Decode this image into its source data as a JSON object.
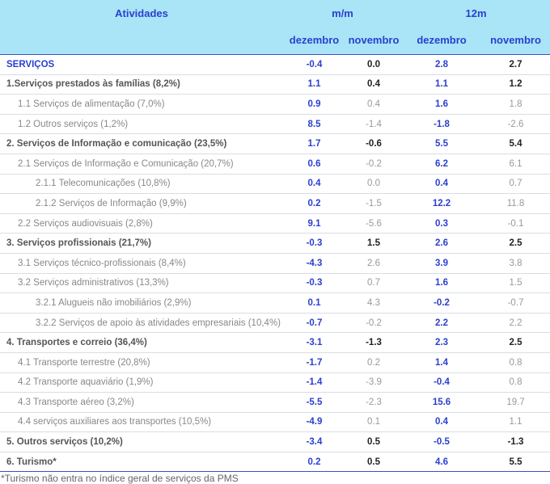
{
  "table": {
    "header": [
      "Atividades",
      "m/m",
      "12m"
    ],
    "subheader": [
      "dezembro",
      "novembro",
      "dezembro",
      "novembro"
    ],
    "rows": [
      [
        "SERVIÇOS",
        "-0.4",
        "0.0",
        "2.8",
        "2.7"
      ],
      [
        "1.Serviços prestados às famílias (8,2%)",
        "1.1",
        "0.4",
        "1.1",
        "1.2"
      ],
      [
        "1.1 Serviços de alimentação (7,0%)",
        "0.9",
        "0.4",
        "1.6",
        "1.8"
      ],
      [
        "1.2 Outros serviços (1,2%)",
        "8.5",
        "-1.4",
        "-1.8",
        "-2.6"
      ],
      [
        "2. Serviços de Informação e comunicação (23,5%)",
        "1.7",
        "-0.6",
        "5.5",
        "5.4"
      ],
      [
        "2.1 Serviços de Informação e Comunicação (20,7%)",
        "0.6",
        "-0.2",
        "6.2",
        "6.1"
      ],
      [
        "2.1.1 Telecomunicações (10,8%)",
        "0.4",
        "0.0",
        "0.4",
        "0.7"
      ],
      [
        "2.1.2 Serviços de Informação (9,9%)",
        "0.2",
        "-1.5",
        "12.2",
        "11.8"
      ],
      [
        "2.2 Serviços audiovisuais (2,8%)",
        "9.1",
        "-5.6",
        "0.3",
        "-0.1"
      ],
      [
        "3. Serviços profissionais (21,7%)",
        "-0.3",
        "1.5",
        "2.6",
        "2.5"
      ],
      [
        "3.1 Serviços técnico-profissionais (8,4%)",
        "-4.3",
        "2.6",
        "3.9",
        "3.8"
      ],
      [
        "3.2 Serviços administrativos (13,3%)",
        "-0.3",
        "0.7",
        "1.6",
        "1.5"
      ],
      [
        "3.2.1 Alugueis não imobiliários (2,9%)",
        "0.1",
        "4.3",
        "-0.2",
        "-0.7"
      ],
      [
        "3.2.2 Serviços de apoio às atividades empresariais (10,4%)",
        "-0.7",
        "-0.2",
        "2.2",
        "2.2"
      ],
      [
        "4. Transportes e correio (36,4%)",
        "-3.1",
        "-1.3",
        "2.3",
        "2.5"
      ],
      [
        "4.1 Transporte terrestre (20,8%)",
        "-1.7",
        "0.2",
        "1.4",
        "0.8"
      ],
      [
        "4.2 Transporte aquaviário (1,9%)",
        "-1.4",
        "-3.9",
        "-0.4",
        "0.8"
      ],
      [
        "4.3 Transporte aéreo (3,2%)",
        "-5.5",
        "-2.3",
        "15.6",
        "19.7"
      ],
      [
        "4.4 serviços auxiliares aos transportes (10,5%)",
        "-4.9",
        "0.1",
        "0.4",
        "1.1"
      ],
      [
        "5. Outros serviços (10,2%)",
        "-3.4",
        "0.5",
        "-0.5",
        "-1.3"
      ],
      [
        "6. Turismo*",
        "0.2",
        "0.5",
        "4.6",
        "5.5"
      ]
    ]
  },
  "footnote": "*Turismo não entra no índice geral de serviços da PMS"
}
